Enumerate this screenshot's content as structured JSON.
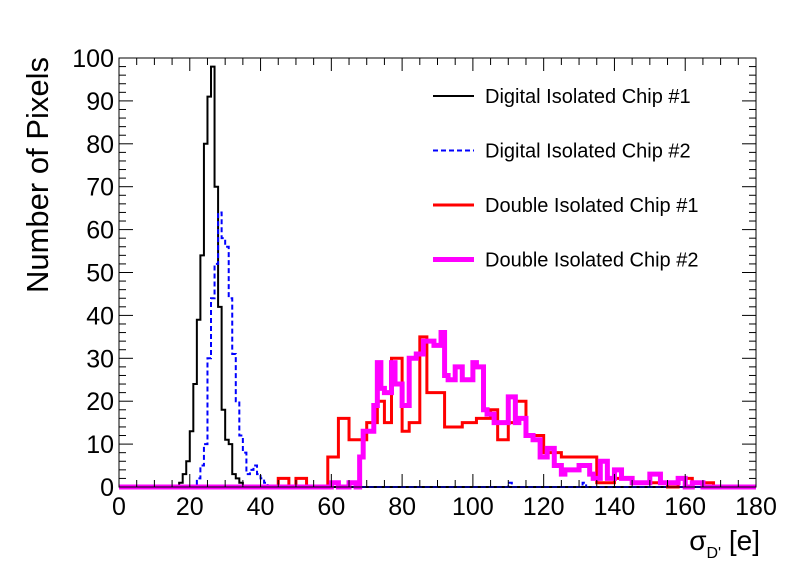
{
  "chart_data": {
    "type": "step-histogram",
    "title": "",
    "xlabel": "σ",
    "xlabel_sub": "D'",
    "xlabel_unit": " [e]",
    "ylabel": "Number of Pixels",
    "xlim": [
      0,
      180
    ],
    "ylim": [
      0,
      100
    ],
    "x_ticks": [
      0,
      20,
      40,
      60,
      80,
      100,
      120,
      140,
      160,
      180
    ],
    "y_ticks": [
      0,
      10,
      20,
      30,
      40,
      50,
      60,
      70,
      80,
      90,
      100
    ],
    "bin_width": 1,
    "legend_position": "top-right",
    "series": [
      {
        "name": "Digital Isolated Chip #1",
        "color": "#000000",
        "style": "solid",
        "weight": "thin",
        "points": [
          [
            0,
            0
          ],
          [
            17,
            0
          ],
          [
            17,
            1
          ],
          [
            18,
            1
          ],
          [
            18,
            3
          ],
          [
            19,
            3
          ],
          [
            19,
            6
          ],
          [
            20,
            6
          ],
          [
            20,
            13
          ],
          [
            21,
            13
          ],
          [
            21,
            24
          ],
          [
            22,
            24
          ],
          [
            22,
            39
          ],
          [
            23,
            39
          ],
          [
            23,
            54
          ],
          [
            24,
            54
          ],
          [
            24,
            80
          ],
          [
            25,
            80
          ],
          [
            25,
            91
          ],
          [
            26,
            91
          ],
          [
            26,
            98
          ],
          [
            27,
            98
          ],
          [
            27,
            70
          ],
          [
            28,
            70
          ],
          [
            28,
            42
          ],
          [
            29,
            42
          ],
          [
            29,
            18
          ],
          [
            30,
            18
          ],
          [
            30,
            11
          ],
          [
            31,
            11
          ],
          [
            31,
            10
          ],
          [
            32,
            10
          ],
          [
            32,
            3
          ],
          [
            33,
            3
          ],
          [
            33,
            2
          ],
          [
            34,
            2
          ],
          [
            34,
            1
          ],
          [
            35,
            1
          ],
          [
            35,
            0
          ],
          [
            180,
            0
          ]
        ]
      },
      {
        "name": "Digital Isolated Chip #2",
        "color": "#0000ff",
        "style": "dashed",
        "weight": "thin",
        "points": [
          [
            0,
            0
          ],
          [
            22,
            0
          ],
          [
            22,
            2
          ],
          [
            23,
            2
          ],
          [
            23,
            5
          ],
          [
            24,
            5
          ],
          [
            24,
            10
          ],
          [
            25,
            10
          ],
          [
            25,
            30
          ],
          [
            26,
            30
          ],
          [
            26,
            44
          ],
          [
            27,
            44
          ],
          [
            27,
            52
          ],
          [
            28,
            52
          ],
          [
            28,
            64
          ],
          [
            29,
            64
          ],
          [
            29,
            58
          ],
          [
            30,
            58
          ],
          [
            30,
            56
          ],
          [
            31,
            56
          ],
          [
            31,
            44
          ],
          [
            32,
            44
          ],
          [
            32,
            31
          ],
          [
            33,
            31
          ],
          [
            33,
            20
          ],
          [
            34,
            20
          ],
          [
            34,
            12
          ],
          [
            35,
            12
          ],
          [
            35,
            8
          ],
          [
            36,
            8
          ],
          [
            36,
            3
          ],
          [
            37,
            3
          ],
          [
            37,
            4
          ],
          [
            38,
            4
          ],
          [
            38,
            5
          ],
          [
            39,
            5
          ],
          [
            39,
            3
          ],
          [
            40,
            3
          ],
          [
            40,
            2
          ],
          [
            41,
            2
          ],
          [
            41,
            1
          ],
          [
            42,
            1
          ],
          [
            42,
            0
          ],
          [
            110,
            0
          ],
          [
            110,
            1
          ],
          [
            111,
            1
          ],
          [
            111,
            0
          ],
          [
            131,
            0
          ],
          [
            131,
            1
          ],
          [
            132,
            1
          ],
          [
            132,
            0
          ],
          [
            180,
            0
          ]
        ]
      },
      {
        "name": "Double Isolated Chip #1",
        "color": "#ff0000",
        "style": "solid",
        "weight": "medium",
        "points": [
          [
            0,
            0
          ],
          [
            45,
            0
          ],
          [
            45,
            2
          ],
          [
            48,
            2
          ],
          [
            48,
            0
          ],
          [
            50,
            0
          ],
          [
            50,
            2
          ],
          [
            53,
            2
          ],
          [
            53,
            0
          ],
          [
            59,
            0
          ],
          [
            59,
            7
          ],
          [
            62,
            7
          ],
          [
            62,
            16
          ],
          [
            65,
            16
          ],
          [
            65,
            11
          ],
          [
            70,
            11
          ],
          [
            70,
            15
          ],
          [
            73,
            15
          ],
          [
            73,
            20
          ],
          [
            75,
            20
          ],
          [
            75,
            15
          ],
          [
            77,
            15
          ],
          [
            77,
            30
          ],
          [
            80,
            30
          ],
          [
            80,
            13
          ],
          [
            82,
            13
          ],
          [
            82,
            15
          ],
          [
            85,
            15
          ],
          [
            85,
            35
          ],
          [
            87,
            35
          ],
          [
            87,
            22
          ],
          [
            92,
            22
          ],
          [
            92,
            14
          ],
          [
            97,
            14
          ],
          [
            97,
            15
          ],
          [
            101,
            15
          ],
          [
            101,
            16
          ],
          [
            105,
            16
          ],
          [
            105,
            18
          ],
          [
            107,
            18
          ],
          [
            107,
            11
          ],
          [
            110,
            11
          ],
          [
            110,
            15
          ],
          [
            112,
            15
          ],
          [
            112,
            20
          ],
          [
            115,
            20
          ],
          [
            115,
            12
          ],
          [
            120,
            12
          ],
          [
            120,
            8
          ],
          [
            125,
            8
          ],
          [
            125,
            7
          ],
          [
            135,
            7
          ],
          [
            135,
            1
          ],
          [
            140,
            1
          ],
          [
            140,
            2
          ],
          [
            145,
            2
          ],
          [
            145,
            1
          ],
          [
            155,
            1
          ],
          [
            155,
            0
          ],
          [
            158,
            0
          ],
          [
            158,
            2
          ],
          [
            162,
            2
          ],
          [
            162,
            1
          ],
          [
            168,
            1
          ],
          [
            168,
            0
          ],
          [
            180,
            0
          ]
        ]
      },
      {
        "name": "Double Isolated Chip #2",
        "color": "#ff00ff",
        "style": "solid",
        "weight": "thick",
        "points": [
          [
            0,
            0
          ],
          [
            60,
            0
          ],
          [
            60,
            1
          ],
          [
            62,
            1
          ],
          [
            62,
            0
          ],
          [
            65,
            0
          ],
          [
            65,
            1
          ],
          [
            67,
            1
          ],
          [
            67,
            0
          ],
          [
            68,
            0
          ],
          [
            68,
            7
          ],
          [
            69,
            7
          ],
          [
            69,
            13
          ],
          [
            72,
            13
          ],
          [
            72,
            19
          ],
          [
            73,
            19
          ],
          [
            73,
            29
          ],
          [
            74,
            29
          ],
          [
            74,
            23
          ],
          [
            75,
            23
          ],
          [
            75,
            22
          ],
          [
            77,
            22
          ],
          [
            77,
            29
          ],
          [
            78,
            29
          ],
          [
            78,
            24
          ],
          [
            80,
            24
          ],
          [
            80,
            19
          ],
          [
            82,
            19
          ],
          [
            82,
            30
          ],
          [
            84,
            30
          ],
          [
            84,
            31
          ],
          [
            86,
            31
          ],
          [
            86,
            34
          ],
          [
            89,
            34
          ],
          [
            89,
            33
          ],
          [
            91,
            33
          ],
          [
            91,
            36
          ],
          [
            92,
            36
          ],
          [
            92,
            26
          ],
          [
            93,
            26
          ],
          [
            93,
            25
          ],
          [
            95,
            25
          ],
          [
            95,
            28
          ],
          [
            97,
            28
          ],
          [
            97,
            25
          ],
          [
            100,
            25
          ],
          [
            100,
            29
          ],
          [
            101,
            29
          ],
          [
            101,
            28
          ],
          [
            103,
            28
          ],
          [
            103,
            18
          ],
          [
            104,
            18
          ],
          [
            104,
            17
          ],
          [
            106,
            17
          ],
          [
            106,
            15
          ],
          [
            110,
            15
          ],
          [
            110,
            21
          ],
          [
            112,
            21
          ],
          [
            112,
            15
          ],
          [
            113,
            15
          ],
          [
            113,
            16
          ],
          [
            115,
            16
          ],
          [
            115,
            12
          ],
          [
            117,
            12
          ],
          [
            117,
            11
          ],
          [
            119,
            11
          ],
          [
            119,
            7
          ],
          [
            121,
            7
          ],
          [
            121,
            9
          ],
          [
            123,
            9
          ],
          [
            123,
            5
          ],
          [
            125,
            5
          ],
          [
            125,
            3
          ],
          [
            126,
            3
          ],
          [
            126,
            4
          ],
          [
            127,
            4
          ],
          [
            127,
            4
          ],
          [
            130,
            4
          ],
          [
            130,
            5
          ],
          [
            133,
            5
          ],
          [
            133,
            3
          ],
          [
            134,
            3
          ],
          [
            134,
            2
          ],
          [
            136,
            2
          ],
          [
            136,
            6
          ],
          [
            138,
            6
          ],
          [
            138,
            2
          ],
          [
            140,
            2
          ],
          [
            140,
            4
          ],
          [
            142,
            4
          ],
          [
            142,
            2
          ],
          [
            145,
            2
          ],
          [
            145,
            1
          ],
          [
            150,
            1
          ],
          [
            150,
            3
          ],
          [
            153,
            3
          ],
          [
            153,
            1
          ],
          [
            158,
            1
          ],
          [
            158,
            2
          ],
          [
            160,
            2
          ],
          [
            160,
            0
          ],
          [
            162,
            0
          ],
          [
            162,
            1
          ],
          [
            165,
            1
          ],
          [
            165,
            0
          ],
          [
            180,
            0
          ]
        ]
      }
    ]
  }
}
